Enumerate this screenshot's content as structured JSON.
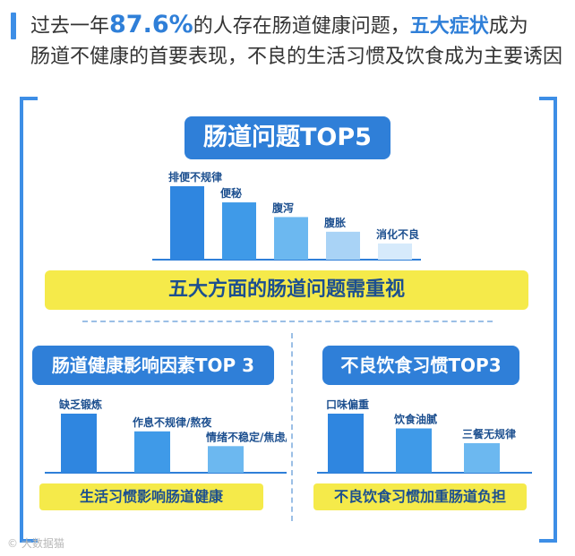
{
  "header": {
    "line1_pre": "过去一年",
    "line1_pct": "87.6%",
    "line1_mid": "的人存在肠道健康问题，",
    "line1_hi": "五大症状",
    "line1_post": "成为",
    "line2": "肠道不健康的首要表现，不良的生活习惯及饮食成为主要诱因"
  },
  "panel1": {
    "title": "肠道问题TOP5",
    "banner": "五大方面的肠道问题需重视"
  },
  "panel2": {
    "title": "肠道健康影响因素TOP 3",
    "banner": "生活习惯影响肠道健康"
  },
  "panel3": {
    "title": "不良饮食习惯TOP3",
    "banner": "不良饮食习惯加重肠道负担"
  },
  "colors": {
    "accent": "#2f7fd8",
    "bar_shades": [
      "#2f86e0",
      "#3f9ae8",
      "#6cb8f0",
      "#a9d3f6",
      "#d6eafb"
    ],
    "banner": "#f5ea4a"
  },
  "watermark": "© 大数据猫",
  "chart_data": [
    {
      "type": "bar",
      "title": "肠道问题TOP5",
      "categories": [
        "排便不规律",
        "便秘",
        "腹泻",
        "腹胀",
        "消化不良"
      ],
      "values": [
        100,
        78,
        58,
        38,
        22
      ],
      "ylim": [
        0,
        100
      ],
      "grid": false,
      "legend": "none"
    },
    {
      "type": "bar",
      "title": "肠道健康影响因素TOP 3",
      "categories": [
        "缺乏锻炼",
        "作息不规律/熬夜",
        "情绪不稳定/焦虑/烦躁"
      ],
      "values": [
        100,
        70,
        45
      ],
      "ylim": [
        0,
        100
      ],
      "grid": false,
      "legend": "none"
    },
    {
      "type": "bar",
      "title": "不良饮食习惯TOP3",
      "categories": [
        "口味偏重",
        "饮食油腻",
        "三餐无规律"
      ],
      "values": [
        100,
        75,
        50
      ],
      "ylim": [
        0,
        100
      ],
      "grid": false,
      "legend": "none"
    }
  ]
}
